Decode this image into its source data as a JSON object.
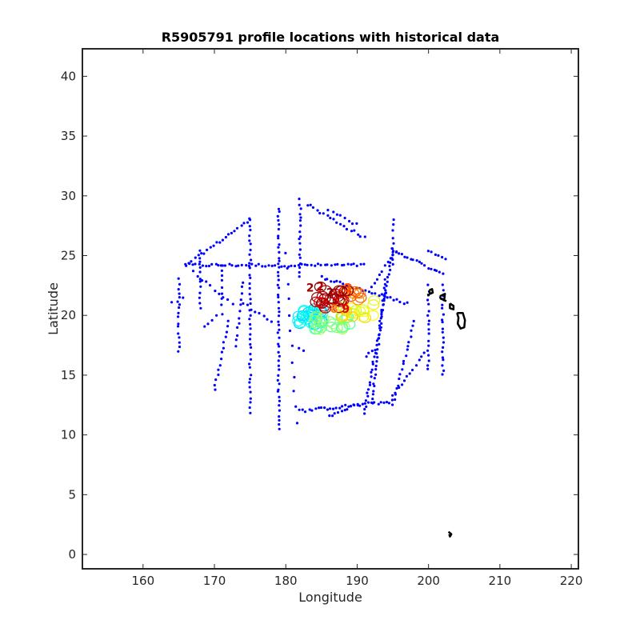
{
  "chart_data": {
    "type": "scatter",
    "title": "R5905791 profile locations with historical data",
    "xlabel": "Longitude",
    "ylabel": "Latitude",
    "xlim": [
      151.5,
      221
    ],
    "ylim": [
      -1.2,
      42.3
    ],
    "xticks": [
      160,
      170,
      180,
      190,
      200,
      210,
      220
    ],
    "yticks": [
      0,
      5,
      10,
      15,
      20,
      25,
      30,
      35,
      40
    ],
    "grid": false,
    "colors": {
      "historical": "#0000ff",
      "coastline": "#000000",
      "colormap": "jet"
    },
    "historical_tracks": [
      {
        "kind": "line",
        "from": [
          166,
          24.2
        ],
        "to": [
          191,
          24.2
        ],
        "n": 55
      },
      {
        "kind": "line",
        "from": [
          166,
          24.2
        ],
        "to": [
          175,
          28
        ],
        "n": 22
      },
      {
        "kind": "line",
        "from": [
          175,
          28
        ],
        "to": [
          175,
          11.8
        ],
        "n": 40
      },
      {
        "kind": "line",
        "from": [
          179,
          29
        ],
        "to": [
          179,
          10.5
        ],
        "n": 50
      },
      {
        "kind": "line",
        "from": [
          182,
          29.7
        ],
        "to": [
          182,
          23.3
        ],
        "n": 18
      },
      {
        "kind": "line",
        "from": [
          183,
          29.3
        ],
        "to": [
          191,
          26.5
        ],
        "n": 18
      },
      {
        "kind": "line",
        "from": [
          168,
          25.3
        ],
        "to": [
          168,
          20.6
        ],
        "n": 12
      },
      {
        "kind": "line",
        "from": [
          165,
          23
        ],
        "to": [
          165,
          17
        ],
        "n": 16
      },
      {
        "kind": "line",
        "from": [
          171,
          24.2
        ],
        "to": [
          171,
          21
        ],
        "n": 8
      },
      {
        "kind": "line",
        "from": [
          195,
          28
        ],
        "to": [
          195,
          24.2
        ],
        "n": 9
      },
      {
        "kind": "line",
        "from": [
          192,
          22.5
        ],
        "to": [
          195.5,
          25.3
        ],
        "n": 10
      },
      {
        "kind": "line",
        "from": [
          195,
          25.5
        ],
        "to": [
          202,
          23.4
        ],
        "n": 18
      },
      {
        "kind": "line",
        "from": [
          195,
          25.5
        ],
        "to": [
          191,
          11.8
        ],
        "n": 42
      },
      {
        "kind": "line",
        "from": [
          194,
          23
        ],
        "to": [
          192,
          12.6
        ],
        "n": 30
      },
      {
        "kind": "line",
        "from": [
          185,
          23.2
        ],
        "to": [
          197,
          21
        ],
        "n": 28
      },
      {
        "kind": "line",
        "from": [
          200,
          22.5
        ],
        "to": [
          200,
          15.5
        ],
        "n": 18
      },
      {
        "kind": "line",
        "from": [
          202,
          22.5
        ],
        "to": [
          202,
          15
        ],
        "n": 20
      },
      {
        "kind": "line",
        "from": [
          198,
          19.5
        ],
        "to": [
          195,
          12.6
        ],
        "n": 18
      },
      {
        "kind": "line",
        "from": [
          199.5,
          16.8
        ],
        "to": [
          195,
          13.3
        ],
        "n": 12
      },
      {
        "kind": "line",
        "from": [
          182,
          12
        ],
        "to": [
          195,
          12.8
        ],
        "n": 32
      },
      {
        "kind": "line",
        "from": [
          172,
          19.5
        ],
        "to": [
          170,
          13.7
        ],
        "n": 14
      },
      {
        "kind": "line",
        "from": [
          174,
          22.8
        ],
        "to": [
          173,
          17.4
        ],
        "n": 12
      },
      {
        "kind": "line",
        "from": [
          180,
          25.2
        ],
        "to": [
          181.5,
          11
        ],
        "n": 12
      },
      {
        "kind": "line",
        "from": [
          186,
          28.8
        ],
        "to": [
          190,
          27.6
        ],
        "n": 8
      },
      {
        "kind": "line",
        "from": [
          200,
          25.3
        ],
        "to": [
          202.5,
          24.8
        ],
        "n": 6
      },
      {
        "kind": "line",
        "from": [
          167,
          23.6
        ],
        "to": [
          172.5,
          21
        ],
        "n": 10
      },
      {
        "kind": "line",
        "from": [
          186,
          11.5
        ],
        "to": [
          190,
          12.6
        ],
        "n": 10
      },
      {
        "kind": "line",
        "from": [
          174,
          21
        ],
        "to": [
          178,
          19.5
        ],
        "n": 8
      },
      {
        "kind": "line",
        "from": [
          168.5,
          19
        ],
        "to": [
          171,
          20.2
        ],
        "n": 5
      },
      {
        "kind": "line",
        "from": [
          164,
          21
        ],
        "to": [
          165.5,
          21.4
        ],
        "n": 3
      },
      {
        "kind": "line",
        "from": [
          181.8,
          17.3
        ],
        "to": [
          182.6,
          17.1
        ],
        "n": 2
      },
      {
        "kind": "line",
        "from": [
          192,
          17.1
        ],
        "to": [
          191.4,
          16.6
        ],
        "n": 3
      }
    ],
    "profile_clusters": [
      {
        "center": [
          183.5,
          19.9
        ],
        "spread": [
          1.8,
          0.7
        ],
        "n": 30,
        "color_from": 0.32,
        "color_to": 0.42
      },
      {
        "center": [
          186.5,
          19.4
        ],
        "spread": [
          2.5,
          0.6
        ],
        "n": 26,
        "color_from": 0.45,
        "color_to": 0.55
      },
      {
        "center": [
          190,
          20.5
        ],
        "spread": [
          2.4,
          0.8
        ],
        "n": 18,
        "color_from": 0.55,
        "color_to": 0.68
      },
      {
        "center": [
          189.5,
          21.6
        ],
        "spread": [
          1.4,
          0.6
        ],
        "n": 10,
        "color_from": 0.72,
        "color_to": 0.82
      },
      {
        "center": [
          186.3,
          21.5
        ],
        "spread": [
          2.4,
          0.9
        ],
        "n": 28,
        "color_from": 0.88,
        "color_to": 1.0
      }
    ],
    "profile_labels": [
      "2",
      "2",
      "2",
      "3",
      "1",
      "8",
      "9"
    ],
    "coastlines": [
      {
        "name": "hawaii",
        "points": [
          [
            204,
            20.2
          ],
          [
            204.8,
            20.2
          ],
          [
            205.1,
            19.6
          ],
          [
            205,
            19
          ],
          [
            204.5,
            18.9
          ],
          [
            204.1,
            19.3
          ],
          [
            204.2,
            19.8
          ],
          [
            204,
            20.2
          ]
        ]
      },
      {
        "name": "maui",
        "points": [
          [
            203,
            21
          ],
          [
            203.5,
            20.8
          ],
          [
            203.5,
            20.5
          ],
          [
            203,
            20.6
          ],
          [
            203,
            21
          ]
        ]
      },
      {
        "name": "molokai",
        "points": [
          [
            202,
            21.3
          ],
          [
            202.5,
            21.2
          ]
        ]
      },
      {
        "name": "oahu",
        "points": [
          [
            201.6,
            21.6
          ],
          [
            202.3,
            21.8
          ],
          [
            202.2,
            21.3
          ],
          [
            201.7,
            21.4
          ],
          [
            201.6,
            21.6
          ]
        ]
      },
      {
        "name": "kauai",
        "points": [
          [
            200.1,
            22.1
          ],
          [
            200.5,
            22.2
          ],
          [
            200.6,
            21.9
          ],
          [
            200.2,
            21.8
          ],
          [
            200.1,
            22.1
          ]
        ]
      },
      {
        "name": "niihau",
        "points": [
          [
            199.9,
            21.8
          ],
          [
            200,
            21.6
          ]
        ]
      },
      {
        "name": "jarvis",
        "points": [
          [
            202.8,
            1.9
          ],
          [
            203.2,
            1.7
          ],
          [
            203,
            1.5
          ],
          [
            202.9,
            1.7
          ]
        ]
      }
    ]
  }
}
